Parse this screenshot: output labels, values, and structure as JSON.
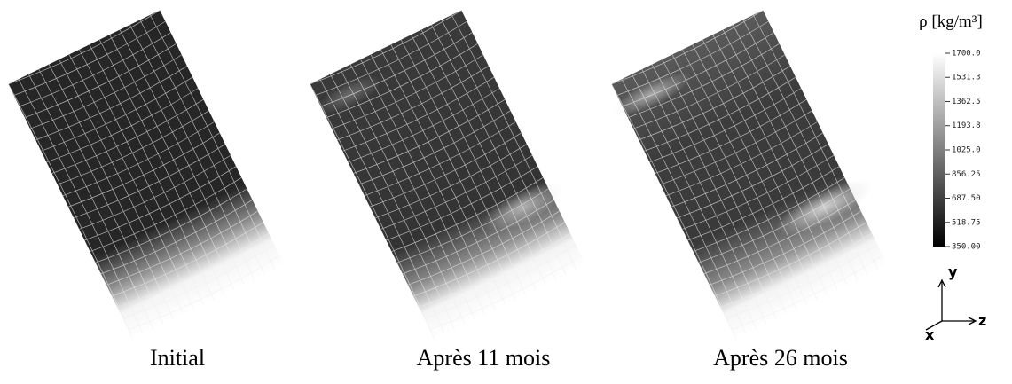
{
  "panels": [
    {
      "caption": "Initial"
    },
    {
      "caption": "Après 11 mois"
    },
    {
      "caption": "Après 26 mois"
    }
  ],
  "colorbar": {
    "title": "ρ [kg/m³]",
    "range": [
      350,
      1700
    ],
    "ticks": [
      {
        "value": 1700,
        "label": "1700.0"
      },
      {
        "value": 1531.3,
        "label": "1531.3"
      },
      {
        "value": 1362.5,
        "label": "1362.5"
      },
      {
        "value": 1193.8,
        "label": "1193.8"
      },
      {
        "value": 1025,
        "label": "1025.0"
      },
      {
        "value": 856.25,
        "label": "856.25"
      },
      {
        "value": 687.5,
        "label": "687.50"
      },
      {
        "value": 518.75,
        "label": "518.75"
      },
      {
        "value": 350,
        "label": "350.00"
      }
    ]
  },
  "axes": {
    "y": "y",
    "z": "z",
    "x": "x"
  }
}
